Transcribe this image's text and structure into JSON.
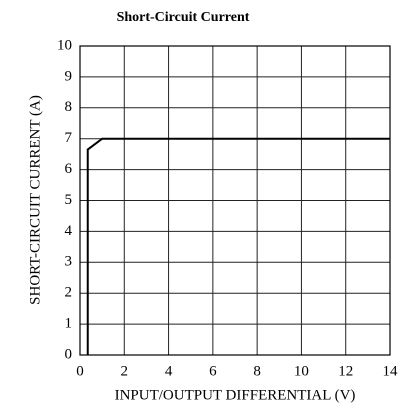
{
  "chart_data": {
    "type": "line",
    "title": "Short-Circuit Current",
    "x_label": "INPUT/OUTPUT DIFFERENTIAL (V)",
    "y_label": "SHORT-CIRCUIT CURRENT (A)",
    "x": [
      0.35,
      0.35,
      1.0,
      14
    ],
    "values": [
      0,
      6.65,
      7.0,
      7.0
    ],
    "color": "#000000",
    "xlim": [
      0,
      14
    ],
    "xticks": [
      0,
      2,
      4,
      6,
      8,
      10,
      12,
      14
    ],
    "ylim": [
      0,
      10
    ],
    "yticks": [
      0,
      1,
      2,
      3,
      4,
      5,
      6,
      7,
      8,
      9,
      10
    ],
    "grid": true
  }
}
